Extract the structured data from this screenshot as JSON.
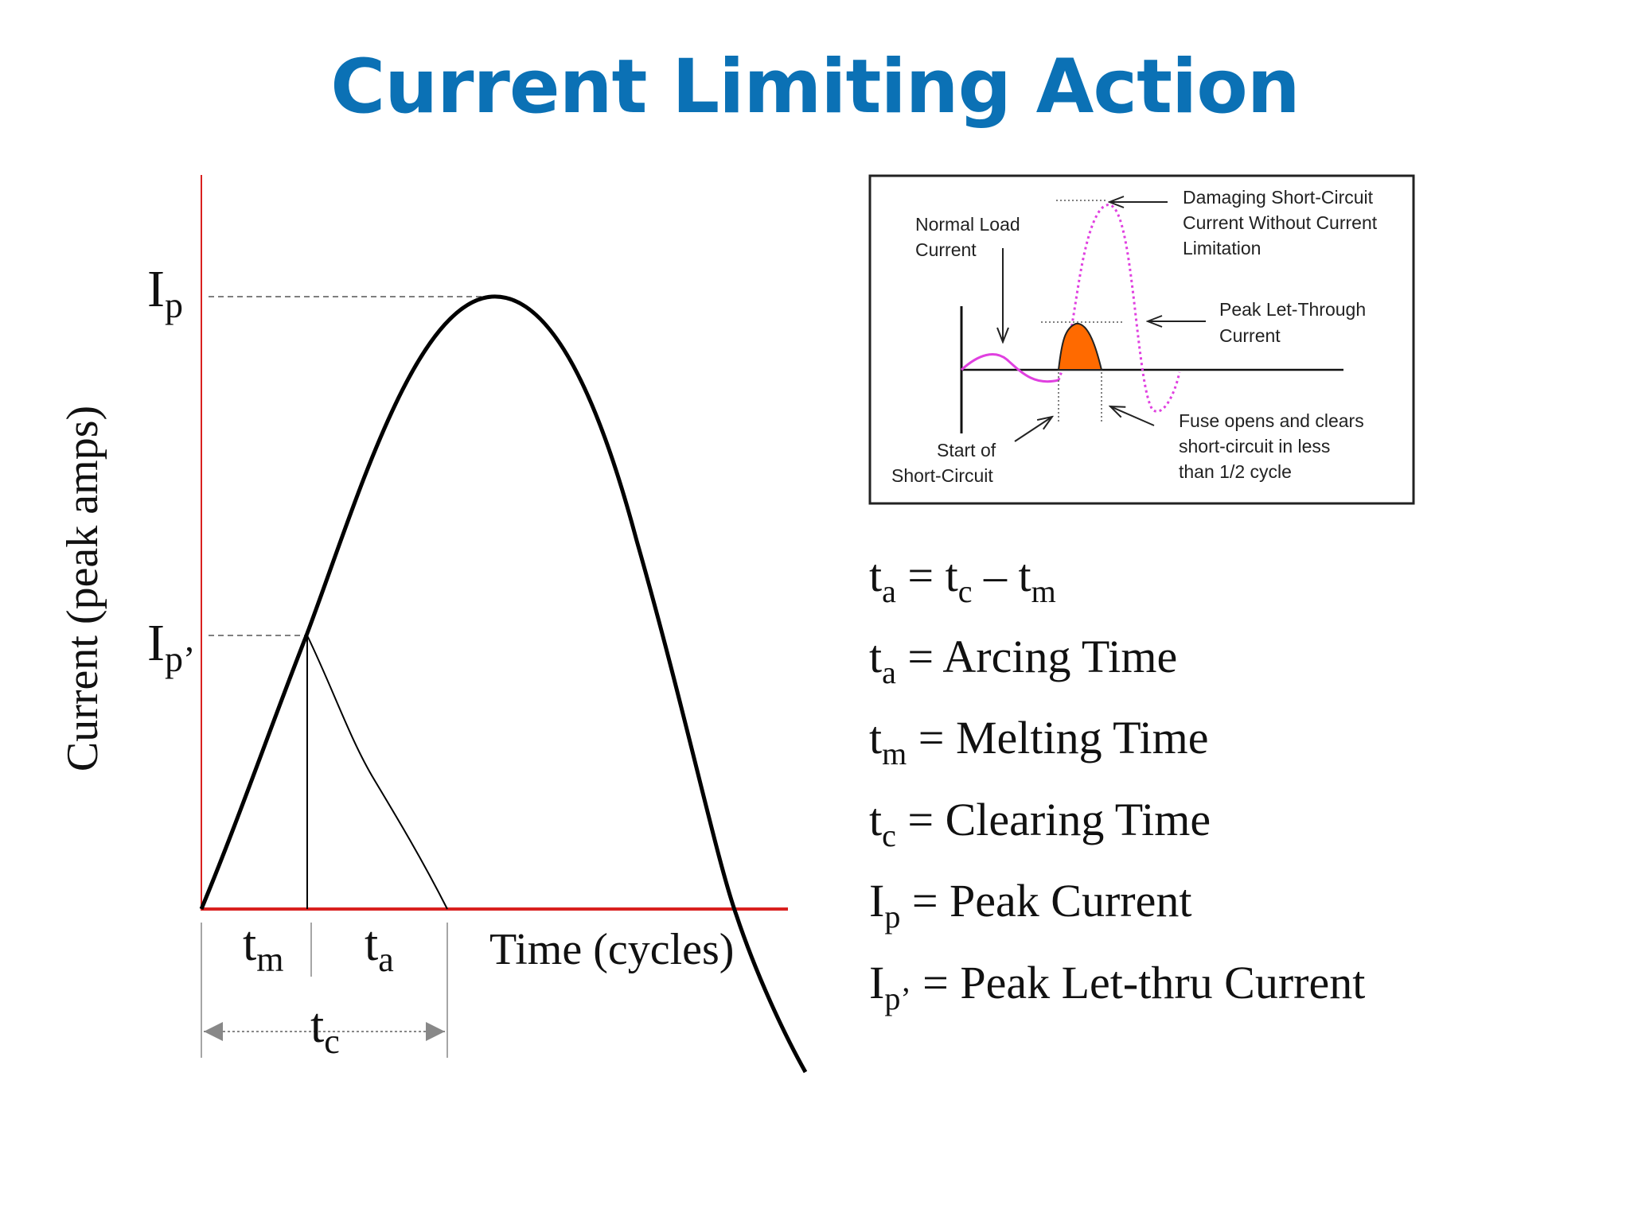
{
  "title": "Current Limiting Action",
  "main_diagram": {
    "y_axis_label": "Current (peak amps)",
    "x_axis_label": "Time (cycles)",
    "peak_label_base": "I",
    "peak_label_sub": "p",
    "letthru_label_base": "I",
    "letthru_label_sub": "p’",
    "tm_base": "t",
    "tm_sub": "m",
    "ta_base": "t",
    "ta_sub": "a",
    "tc_base": "t",
    "tc_sub": "c",
    "colors": {
      "axis": "#d9201f",
      "curve": "#000000",
      "guide": "#555555"
    }
  },
  "inset": {
    "normal_load": [
      "Normal Load",
      "Current"
    ],
    "damaging": [
      "Damaging Short-Circuit",
      "Current Without Current",
      "Limitation"
    ],
    "peak_letthrough": [
      "Peak Let-Through",
      "Current"
    ],
    "start": [
      "Start of",
      "Short-Circuit"
    ],
    "fuse_opens": [
      "Fuse opens and clears",
      "short-circuit in less",
      "than 1/2 cycle"
    ],
    "colors": {
      "fill": "#ff6a00",
      "dotted_wave": "#e040e0",
      "load_wave": "#e040e0"
    }
  },
  "definitions": [
    {
      "base": "t",
      "sub": "a",
      "text": " = t",
      "sub2": "c",
      "text2": " – t",
      "sub3": "m"
    },
    {
      "base": "t",
      "sub": "a",
      "text": " = Arcing  Time"
    },
    {
      "base": "t",
      "sub": "m",
      "text": " = Melting Time"
    },
    {
      "base": "t",
      "sub": "c",
      "text": " = Clearing Time"
    },
    {
      "base": "I",
      "sub": "p",
      "text": " = Peak Current"
    },
    {
      "base": "I",
      "sub": "p’",
      "text": "  = Peak Let-thru Current"
    }
  ]
}
